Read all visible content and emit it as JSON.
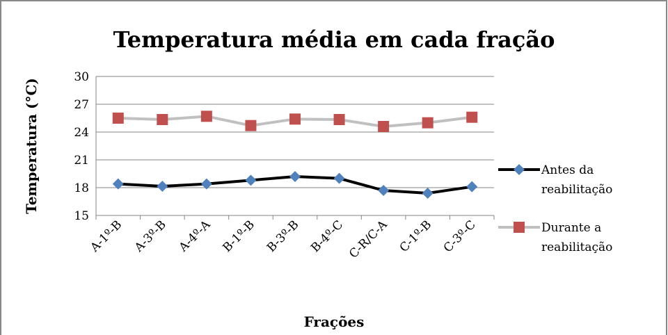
{
  "chart_data": {
    "type": "line",
    "title": "Temperatura média em cada fração",
    "x_label": "Frações",
    "y_label": "Temperatura (°C)",
    "categories": [
      "A-1º-B",
      "A-3º-B",
      "A-4º-A",
      "B-1º-B",
      "B-3º-B",
      "B-4º-C",
      "C-R/C-A",
      "C-1º-B",
      "C-3º-C"
    ],
    "series": [
      {
        "name": "Antes da reabilitação",
        "color": "#000000",
        "marker_color": "#4f81bd",
        "marker": "diamond",
        "values": [
          18.4,
          18.15,
          18.4,
          18.8,
          19.2,
          19.0,
          17.7,
          17.4,
          18.1
        ]
      },
      {
        "name": "Durante a reabilitação",
        "color": "#c0c0c0",
        "marker_color": "#c0504d",
        "marker": "square",
        "values": [
          25.5,
          25.35,
          25.7,
          24.7,
          25.4,
          25.35,
          24.6,
          25.0,
          25.6
        ]
      }
    ],
    "ylim": [
      15,
      30
    ],
    "yticks": [
      15,
      18,
      21,
      24,
      27,
      30
    ],
    "grid": true,
    "legend": "right"
  }
}
